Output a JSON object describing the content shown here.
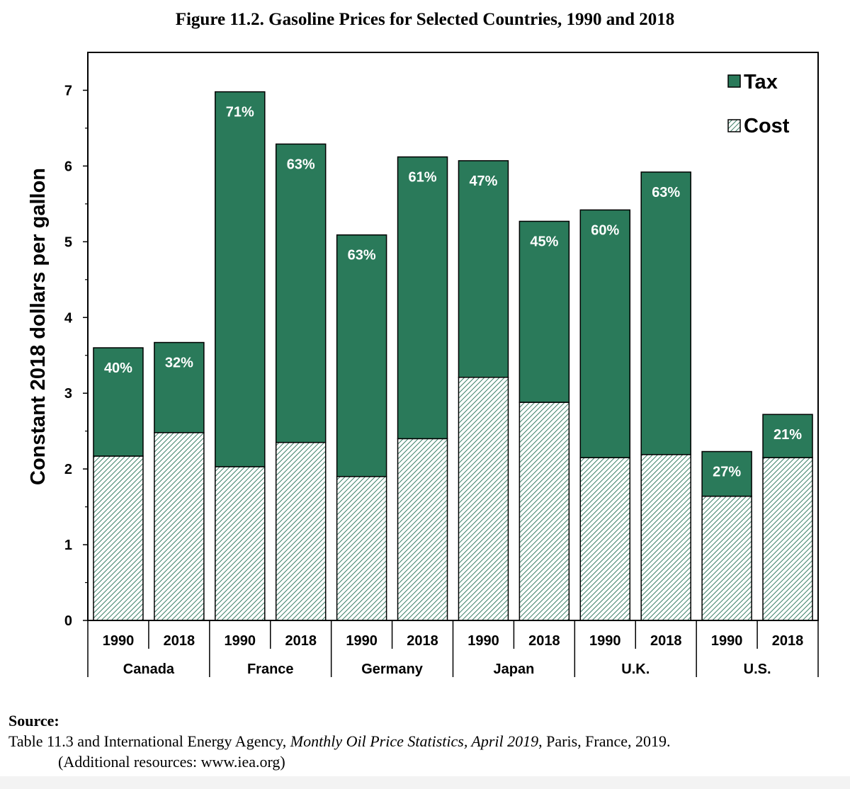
{
  "figure_title": "Figure 11.2.  Gasoline Prices for Selected Countries, 1990 and 2018",
  "source": {
    "heading": "Source:",
    "line1_prefix": "Table 11.3 and International Energy Agency, ",
    "line1_italic": "Monthly Oil Price Statistics, April 2019",
    "line1_suffix": ", Paris, France, 2019.",
    "line2": "(Additional resources:  www.iea.org)"
  },
  "colors": {
    "tax": "#2a7a5a",
    "cost_hatch": "#3a7f66",
    "cost_bg": "#ffffff"
  },
  "chart_data": {
    "type": "bar",
    "stacked": true,
    "ylabel": "Constant  2018 dollars per gallon",
    "ylim": [
      0,
      7.5
    ],
    "yticks": [
      0,
      1,
      2,
      3,
      4,
      5,
      6,
      7
    ],
    "grid": false,
    "legend_position": "top-right",
    "groups": [
      "Canada",
      "France",
      "Germany",
      "Japan",
      "U.K.",
      "U.S."
    ],
    "years": [
      "1990",
      "2018"
    ],
    "categories": [
      "Canada 1990",
      "Canada 2018",
      "France 1990",
      "France 2018",
      "Germany 1990",
      "Germany 2018",
      "Japan 1990",
      "Japan 2018",
      "U.K. 1990",
      "U.K. 2018",
      "U.S. 1990",
      "U.S. 2018"
    ],
    "series": [
      {
        "name": "Cost",
        "values": [
          2.17,
          2.48,
          2.03,
          2.35,
          1.9,
          2.4,
          3.21,
          2.88,
          2.15,
          2.19,
          1.64,
          2.15
        ]
      },
      {
        "name": "Tax",
        "values": [
          1.43,
          1.19,
          4.95,
          3.94,
          3.19,
          3.72,
          2.86,
          2.39,
          3.27,
          3.73,
          0.59,
          0.57
        ]
      }
    ],
    "totals": [
      3.6,
      3.67,
      6.98,
      6.29,
      5.09,
      6.12,
      6.07,
      5.27,
      5.42,
      5.92,
      2.23,
      2.72
    ],
    "tax_share_labels": [
      "40%",
      "32%",
      "71%",
      "63%",
      "63%",
      "61%",
      "47%",
      "45%",
      "60%",
      "63%",
      "27%",
      "21%"
    ],
    "legend": [
      "Tax",
      "Cost"
    ]
  }
}
